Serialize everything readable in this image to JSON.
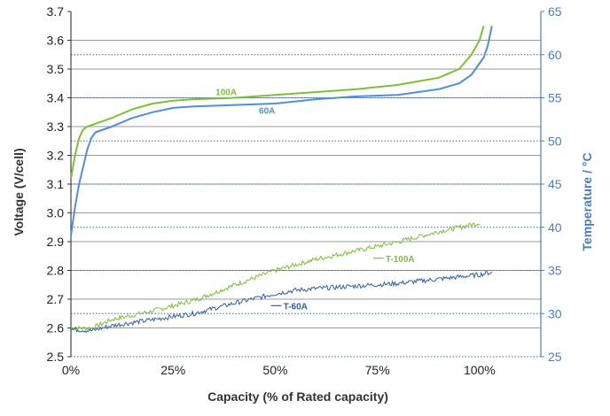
{
  "chart_data": {
    "type": "line",
    "xlabel": "Capacity  (% of Rated capacity)",
    "ylabel_left": "Voltage  (V/cell)",
    "ylabel_right": "Temperature  / °C",
    "xlim": [
      0,
      115
    ],
    "ylim_left": [
      2.5,
      3.7
    ],
    "ylim_right": [
      25,
      65
    ],
    "x_ticks": [
      0,
      25,
      50,
      75,
      100
    ],
    "x_tick_labels": [
      "0%",
      "25%",
      "50%",
      "75%",
      "100%"
    ],
    "y_left_ticks": [
      2.5,
      2.6,
      2.7,
      2.8,
      2.9,
      3.0,
      3.1,
      3.2,
      3.3,
      3.4,
      3.5,
      3.6,
      3.7
    ],
    "y_left_tick_labels": [
      "2.5",
      "2.6",
      "2.7",
      "2.8",
      "2.9",
      "3.0",
      "3.1",
      "3.2",
      "3.3",
      "3.4",
      "3.5",
      "3.6",
      "3.7"
    ],
    "y_right_ticks": [
      25,
      30,
      35,
      40,
      45,
      50,
      55,
      60,
      65
    ],
    "y_right_tick_labels": [
      "25",
      "30",
      "35",
      "40",
      "45",
      "50",
      "55",
      "60",
      "65"
    ],
    "grid": "horizontal",
    "series": [
      {
        "name": "100A",
        "axis": "left",
        "color": "#7dbf3a",
        "style": "solid",
        "x": [
          0,
          1,
          2,
          3,
          4,
          6,
          10,
          15,
          20,
          25,
          30,
          40,
          50,
          60,
          70,
          80,
          90,
          95,
          98,
          100,
          101
        ],
        "y": [
          3.12,
          3.2,
          3.26,
          3.29,
          3.3,
          3.31,
          3.33,
          3.36,
          3.38,
          3.39,
          3.395,
          3.4,
          3.41,
          3.42,
          3.43,
          3.445,
          3.47,
          3.5,
          3.55,
          3.6,
          3.65
        ]
      },
      {
        "name": "60A",
        "axis": "left",
        "color": "#4f8fd6",
        "style": "solid",
        "x": [
          0,
          1,
          2,
          3,
          4,
          5,
          6,
          10,
          15,
          20,
          25,
          30,
          40,
          50,
          60,
          70,
          80,
          90,
          95,
          98,
          101,
          102,
          103
        ],
        "y": [
          2.92,
          3.02,
          3.1,
          3.16,
          3.22,
          3.26,
          3.28,
          3.3,
          3.33,
          3.35,
          3.365,
          3.37,
          3.375,
          3.38,
          3.395,
          3.405,
          3.41,
          3.43,
          3.45,
          3.48,
          3.54,
          3.58,
          3.65
        ]
      },
      {
        "name": "T-100A",
        "axis": "right",
        "color": "#7dbf3a",
        "style": "noisy",
        "x": [
          0,
          5,
          10,
          20,
          30,
          40,
          50,
          60,
          70,
          80,
          90,
          95,
          100
        ],
        "y": [
          28.3,
          28.3,
          29.3,
          30.3,
          31.5,
          33.3,
          35.0,
          36.3,
          37.3,
          38.3,
          39.5,
          40.0,
          40.5
        ]
      },
      {
        "name": "T-60A",
        "axis": "right",
        "color": "#2e5fa8",
        "style": "noisy",
        "x": [
          0,
          5,
          10,
          20,
          30,
          40,
          50,
          55,
          60,
          70,
          80,
          90,
          100,
          103
        ],
        "y": [
          28.2,
          28.0,
          28.6,
          29.3,
          30.0,
          31.2,
          32.3,
          32.7,
          32.9,
          33.2,
          33.5,
          34.0,
          34.5,
          34.8
        ]
      }
    ],
    "series_labels": [
      {
        "series": "100A",
        "text": "100A",
        "x": 38,
        "y": 3.41
      },
      {
        "series": "60A",
        "text": "60A",
        "x": 48,
        "y": 3.345
      },
      {
        "series": "T-100A",
        "text": "T-100A",
        "x": 77,
        "y": 36.0
      },
      {
        "series": "T-60A",
        "text": "T-60A",
        "x": 52,
        "y": 30.5
      }
    ],
    "colors": {
      "green": "#7dbf3a",
      "light_blue": "#4f8fd6",
      "dark_blue": "#2e5fa8",
      "right_axis": "#4a7ec0",
      "grid": "#9a9a9a",
      "grid_dotted": "#3a66b0"
    }
  }
}
